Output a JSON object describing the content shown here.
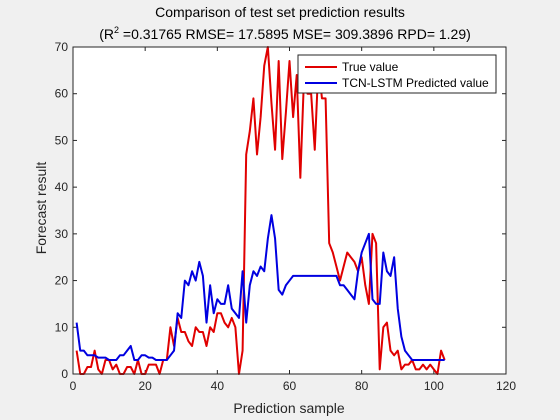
{
  "chart_data": {
    "type": "line",
    "title": "Comparison of test set prediction results",
    "subtitle_r2_label": "R",
    "subtitle_r2_exp": "2",
    "subtitle_rest": " =0.31765 RMSE= 17.5895 MSE= 309.3896 RPD= 1.29)",
    "subtitle_open": "(",
    "xlabel": "Prediction sample",
    "ylabel": "Forecast result",
    "xlim": [
      0,
      120
    ],
    "ylim": [
      0,
      70
    ],
    "xticks": [
      "0",
      "20",
      "40",
      "60",
      "80",
      "100",
      "120"
    ],
    "yticks": [
      "0",
      "10",
      "20",
      "30",
      "40",
      "50",
      "60",
      "70"
    ],
    "legend_position": "top-right",
    "series": [
      {
        "name": "True value",
        "color": "#e00000",
        "values": [
          5,
          0,
          0,
          1.5,
          1.5,
          5,
          1,
          0,
          3,
          3,
          1,
          2,
          0,
          0,
          1.5,
          1.5,
          0,
          3,
          0,
          0,
          2,
          2,
          2,
          0,
          3,
          3,
          10,
          6,
          12,
          9,
          9,
          7,
          6,
          10,
          9,
          9,
          6,
          10,
          9,
          13,
          13,
          11,
          10,
          12,
          10,
          0,
          5,
          47,
          52,
          59,
          47,
          55,
          66,
          70,
          58,
          48,
          67,
          46,
          56,
          67,
          55,
          64,
          42,
          63,
          60,
          60,
          48,
          66,
          59,
          59,
          28,
          26,
          23,
          20,
          23,
          26,
          25,
          24,
          22,
          25,
          19,
          15,
          30,
          28,
          1,
          10,
          11,
          5,
          4,
          5,
          1,
          2,
          2,
          3,
          1,
          1,
          2,
          1,
          2,
          1,
          0,
          5,
          3
        ],
        "xstart": 1
      },
      {
        "name": "TCN-LSTM Predicted value",
        "color": "#0000e0",
        "values": [
          11,
          5,
          5,
          4,
          4,
          4,
          3.5,
          3.5,
          3.5,
          3,
          3,
          3,
          4,
          4,
          5,
          6,
          3,
          3,
          4,
          4,
          3.5,
          3.5,
          3,
          3,
          3,
          3,
          4,
          5,
          13,
          12,
          20,
          19,
          22,
          20,
          24,
          21,
          11,
          19,
          13,
          16,
          15,
          15,
          19,
          14,
          13,
          12,
          22,
          11,
          19,
          22,
          21,
          23,
          22,
          29,
          34,
          29,
          18,
          17,
          19,
          20,
          21,
          21,
          21,
          21,
          21,
          21,
          21,
          21,
          21,
          21,
          21,
          21,
          21,
          19,
          19,
          18,
          17,
          16,
          22,
          26,
          28,
          30,
          16,
          15,
          15,
          26,
          22,
          21,
          25,
          14,
          8,
          5,
          4,
          3,
          3,
          3,
          3,
          3,
          3,
          3,
          3,
          3,
          3
        ],
        "xstart": 1
      }
    ]
  }
}
